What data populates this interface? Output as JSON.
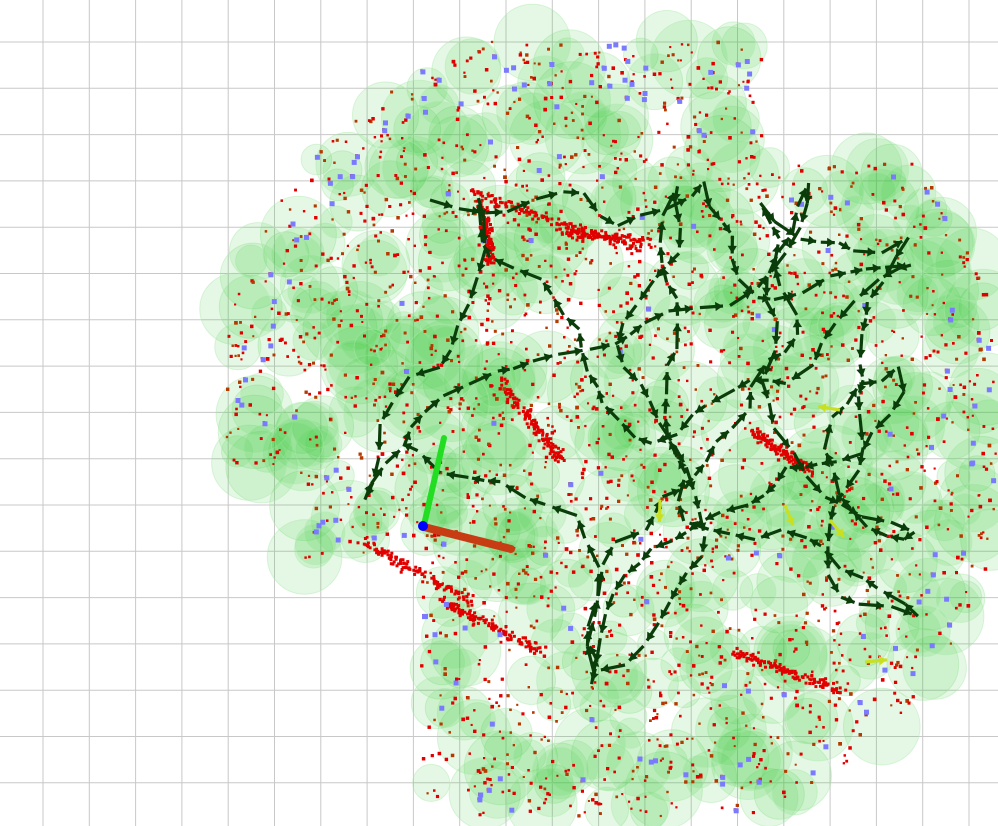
{
  "viewer": {
    "background_color": "#ffffff",
    "grid_color": "#c8c8c8",
    "layers": [
      {
        "name": "grid",
        "icon": "grid-icon"
      },
      {
        "name": "landmark-spheres",
        "color": "#33cc33"
      },
      {
        "name": "point-cloud",
        "color": "#e00000"
      },
      {
        "name": "feature-points",
        "color": "#7a7aff"
      },
      {
        "name": "pose-arrows",
        "color": "#0b3d0b"
      },
      {
        "name": "recent-pose-arrows",
        "color": "#c8e020"
      }
    ],
    "axes": {
      "x_color": "#c83c14",
      "y_color": "#22dd22",
      "z_color": "#0000ff"
    }
  }
}
